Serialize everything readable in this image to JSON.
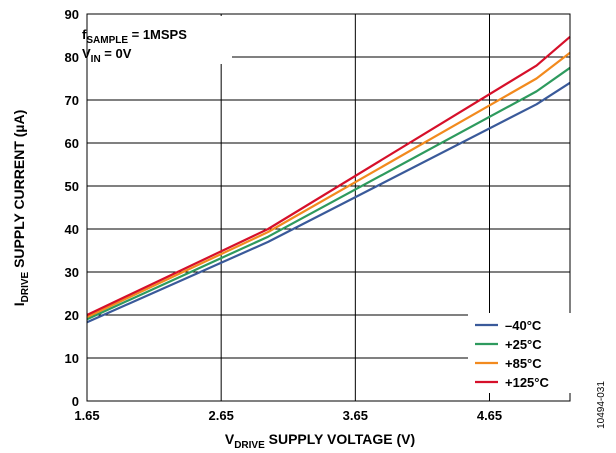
{
  "chart_data": {
    "type": "line",
    "xlabel_main": "V",
    "xlabel_sub": "DRIVE",
    "xlabel_rest": " SUPPLY VOLTAGE (V)",
    "ylabel_main": "I",
    "ylabel_sub": "DRIVE",
    "ylabel_rest": " SUPPLY CURRENT (µA)",
    "xlim": [
      1.65,
      5.25
    ],
    "ylim": [
      0,
      90
    ],
    "xticks": [
      1.65,
      2.65,
      3.65,
      4.65
    ],
    "xtick_labels": [
      "1.65",
      "2.65",
      "3.65",
      "4.65"
    ],
    "yticks": [
      0,
      10,
      20,
      30,
      40,
      50,
      60,
      70,
      80,
      90
    ],
    "ytick_labels": [
      "0",
      "10",
      "20",
      "30",
      "40",
      "50",
      "60",
      "70",
      "80",
      "90"
    ],
    "grid": true,
    "legend_position": "bottom-right",
    "annotation": {
      "line1_main": "f",
      "line1_sub": "SAMPLE",
      "line1_rest": " = 1MSPS",
      "line2_main": "V",
      "line2_sub": "IN",
      "line2_rest": " = 0V"
    },
    "series": [
      {
        "name": "–40°C",
        "color": "#3a5a9a",
        "x": [
          1.65,
          3.0,
          5.0,
          5.25
        ],
        "y": [
          18.3,
          37.0,
          69.0,
          74.0
        ]
      },
      {
        "name": "+25°C",
        "color": "#2e9a5e",
        "x": [
          1.65,
          3.0,
          5.0,
          5.25
        ],
        "y": [
          19.0,
          38.2,
          72.0,
          77.5
        ]
      },
      {
        "name": "+85°C",
        "color": "#f28a1e",
        "x": [
          1.65,
          3.0,
          5.0,
          5.25
        ],
        "y": [
          19.5,
          39.3,
          75.0,
          81.0
        ]
      },
      {
        "name": "+125°C",
        "color": "#d6102a",
        "x": [
          1.65,
          3.0,
          5.0,
          5.25
        ],
        "y": [
          20.0,
          40.0,
          78.0,
          84.7
        ]
      }
    ]
  },
  "figure_id": "10494-031"
}
